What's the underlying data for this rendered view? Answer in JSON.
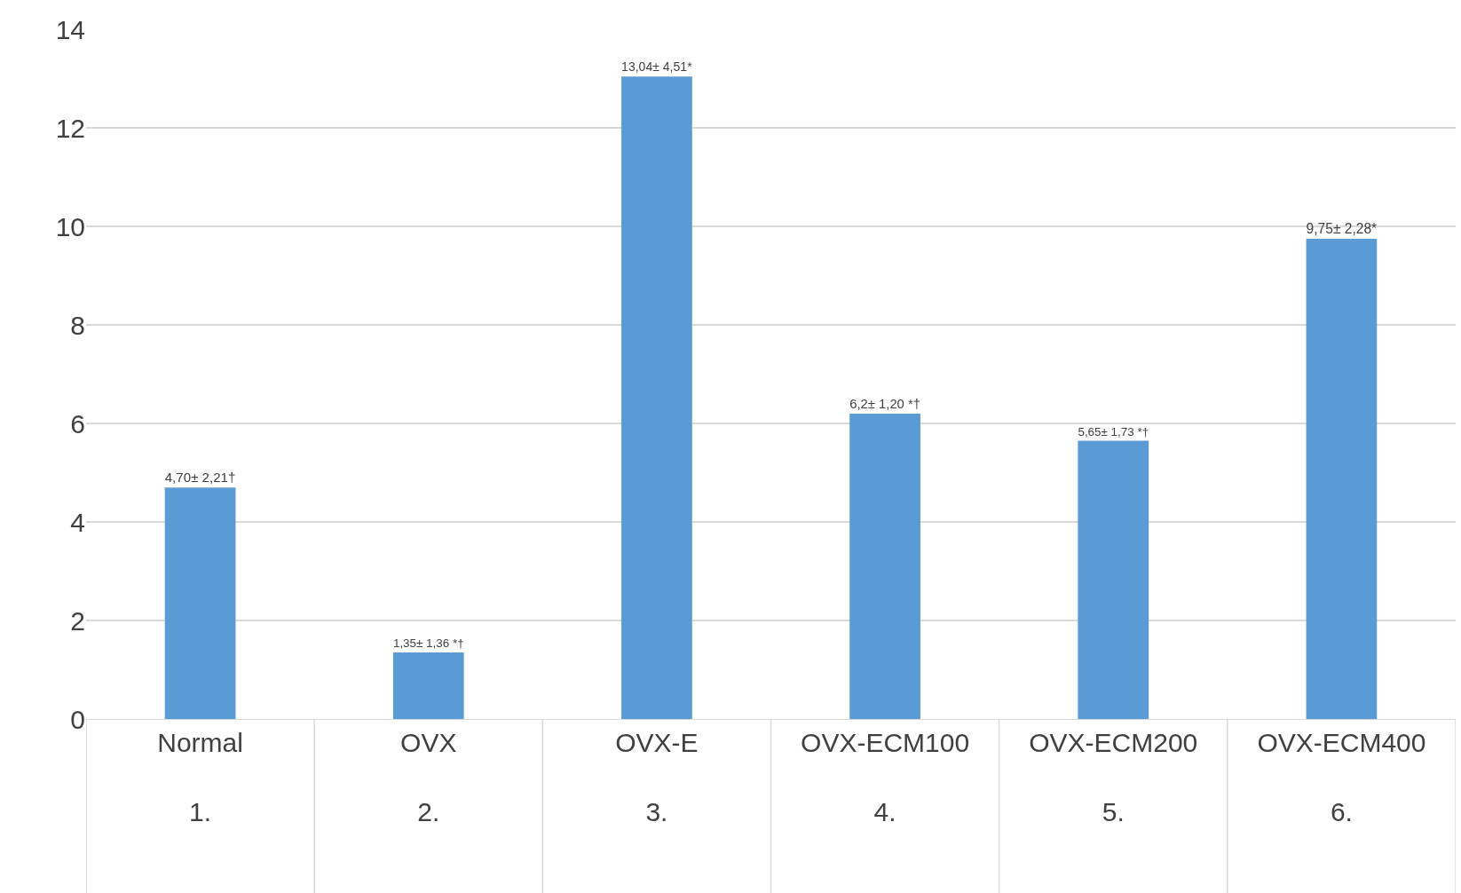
{
  "chart_data": {
    "type": "bar",
    "categories": [
      "Normal\n1.",
      "OVX\n2.",
      "OVX-E\n3.",
      "OVX-ECM100\n4.",
      "OVX-ECM200\n5.",
      "OVX-ECM400\n6."
    ],
    "values": [
      4.7,
      1.35,
      13.04,
      6.2,
      5.65,
      9.75
    ],
    "value_labels": [
      "4,70± 2,21†",
      "1,35± 1,36 *†",
      "13,04± 4,51*",
      "6,2± 1,20 *†",
      "5,65± 1,73 *†",
      "9,75± 2,28*"
    ],
    "color": "#5b9bd5",
    "ylim": [
      0,
      14
    ],
    "yticks": [
      0,
      2,
      4,
      6,
      8,
      10,
      12,
      14
    ],
    "grid": "y",
    "legend": false
  }
}
